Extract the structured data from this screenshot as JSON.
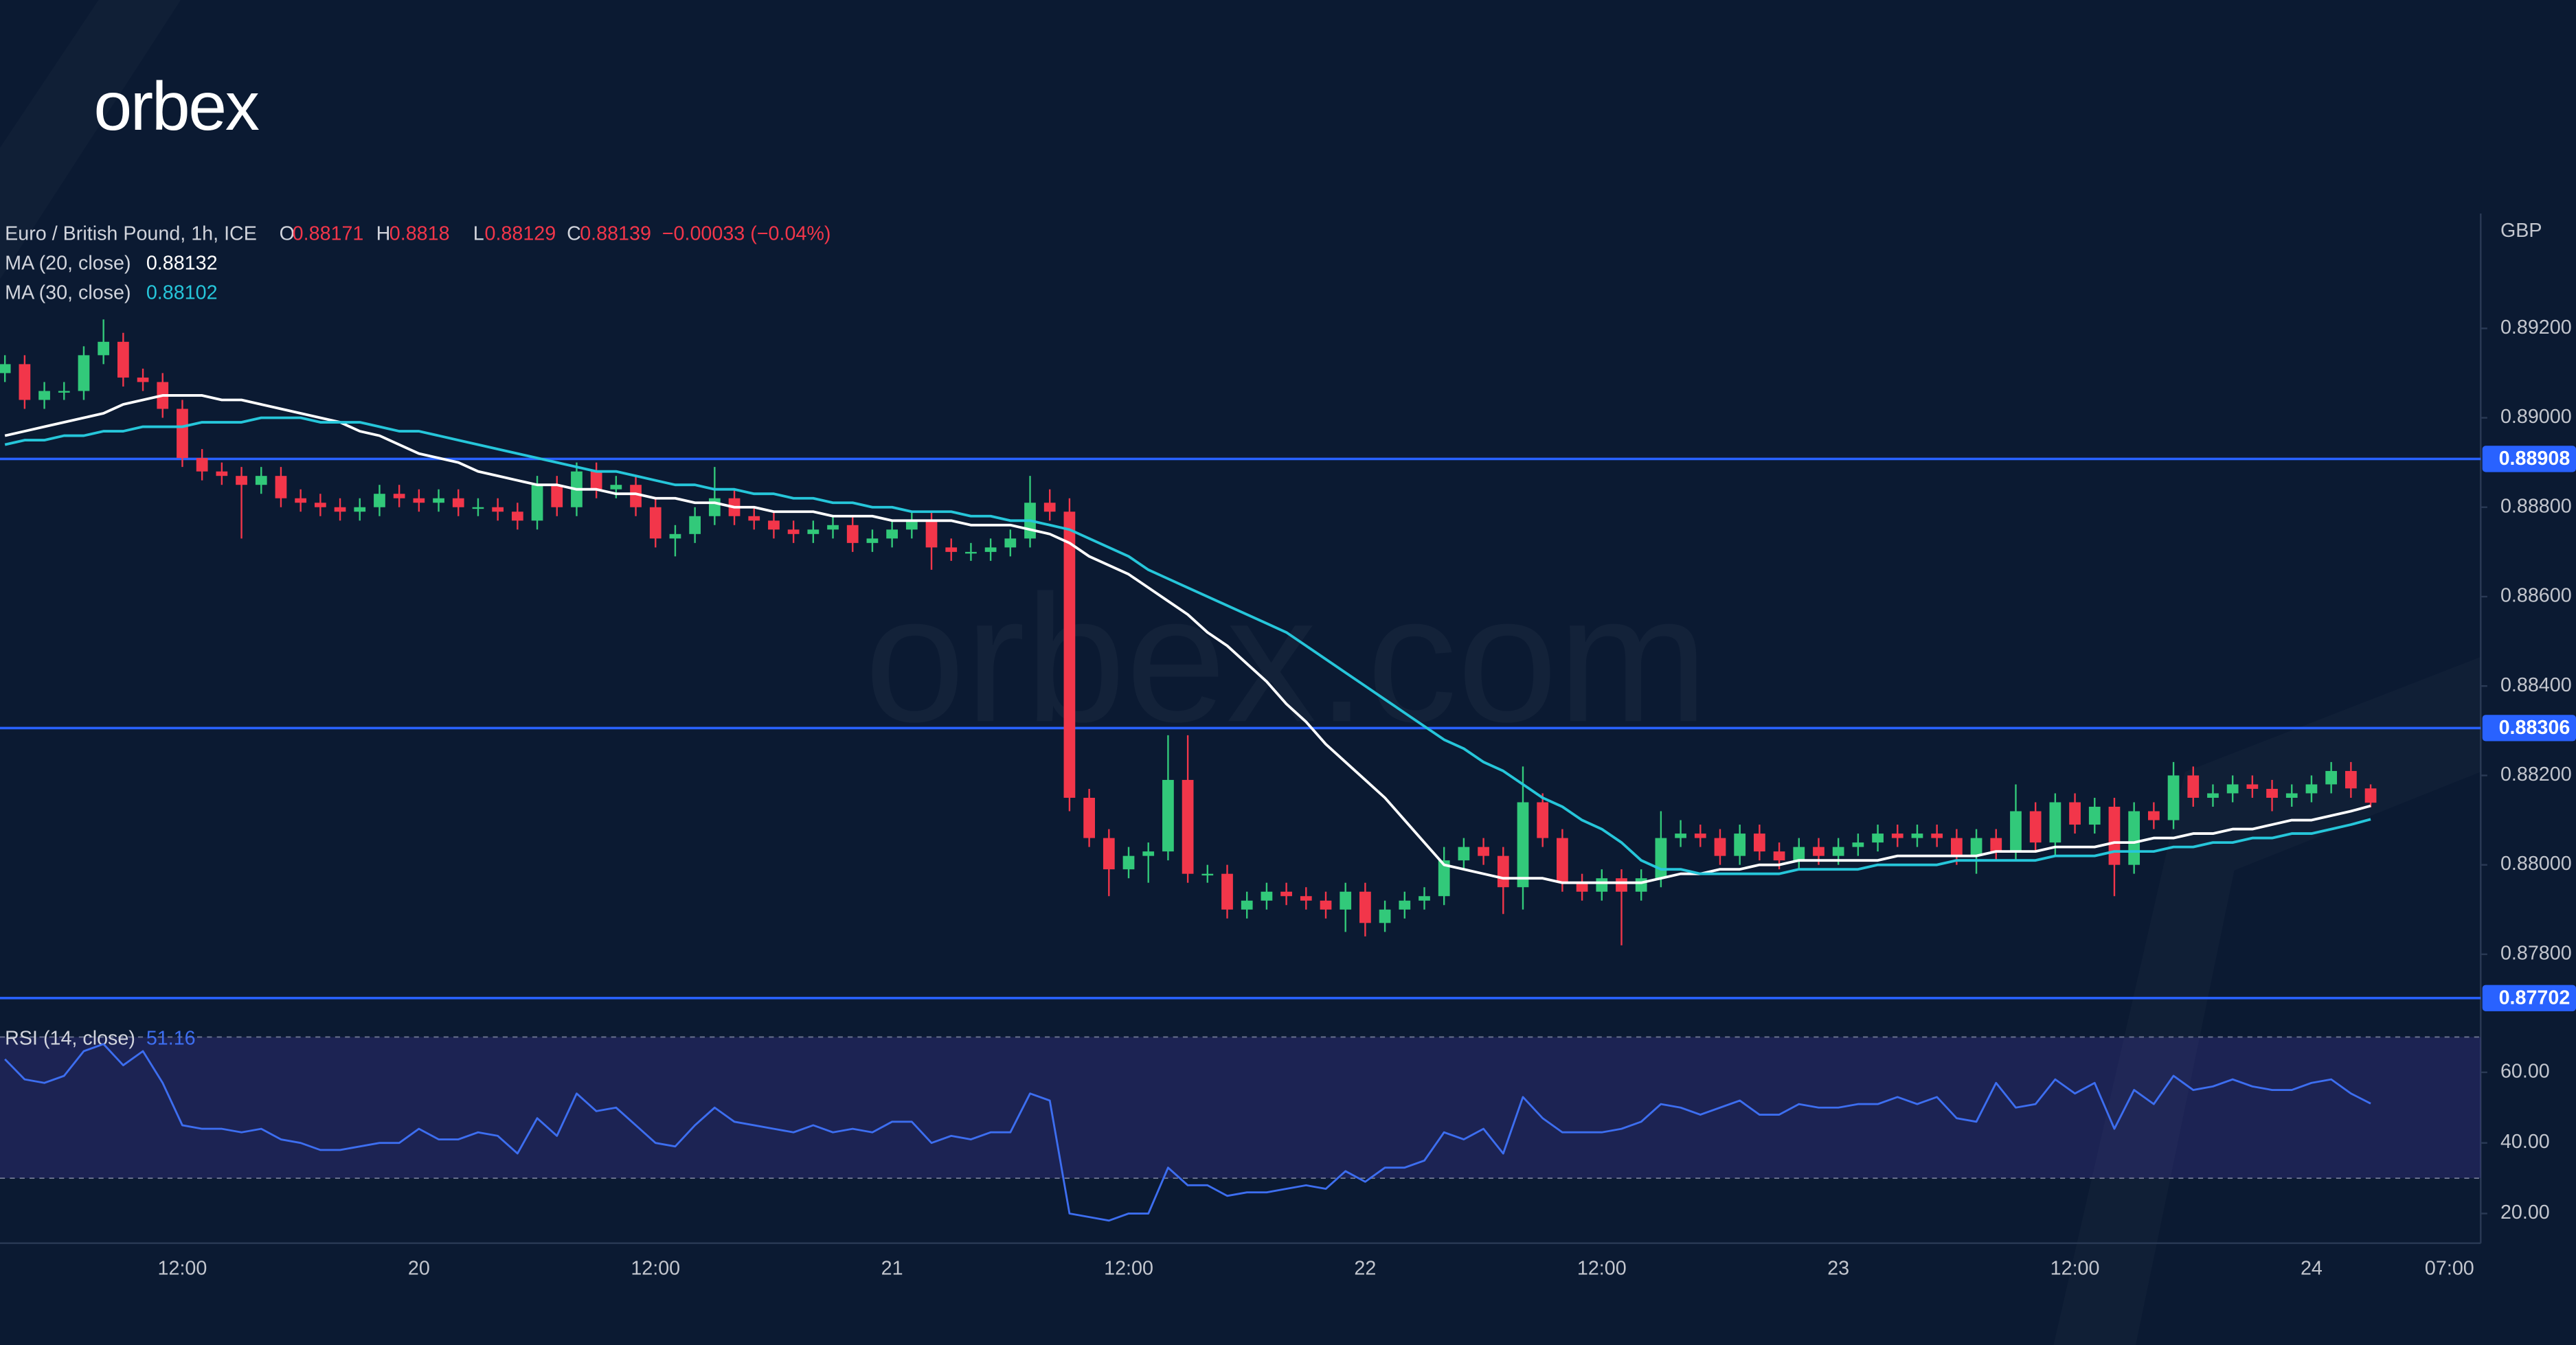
{
  "logo": "orbex",
  "watermark": "orbex.com",
  "chart_data": {
    "type": "candlestick",
    "title": "Euro / British Pound, 1h, ICE",
    "ohlc_labels": [
      "O",
      "H",
      "L",
      "C"
    ],
    "change": "−0.00033 (−0.04%)",
    "currency": "GBP",
    "up_color": "#32c97a",
    "down_color": "#f2364a",
    "categories": [
      null,
      null,
      null,
      null,
      null,
      null,
      null,
      null,
      null,
      "12:00",
      null,
      null,
      null,
      null,
      null,
      null,
      null,
      null,
      null,
      null,
      null,
      "20",
      null,
      null,
      null,
      null,
      null,
      null,
      null,
      null,
      null,
      null,
      null,
      "12:00",
      null,
      null,
      null,
      null,
      null,
      null,
      null,
      null,
      null,
      null,
      null,
      "21",
      null,
      null,
      null,
      null,
      null,
      null,
      null,
      null,
      null,
      null,
      null,
      "12:00",
      null,
      null,
      null,
      null,
      null,
      null,
      null,
      null,
      null,
      null,
      null,
      "22",
      null,
      null,
      null,
      null,
      null,
      null,
      null,
      null,
      null,
      null,
      null,
      "12:00",
      null,
      null,
      null,
      null,
      null,
      null,
      null,
      null,
      null,
      null,
      null,
      "23",
      null,
      null,
      null,
      null,
      null,
      null,
      null,
      null,
      null,
      null,
      null,
      "12:00",
      null,
      null,
      null,
      null,
      null,
      null,
      null,
      null,
      null,
      null,
      null,
      "24",
      null,
      null,
      null,
      null,
      null,
      null,
      "07:00"
    ],
    "open": [
      0.891,
      0.8912,
      0.8904,
      0.8906,
      0.8906,
      0.8914,
      0.8917,
      0.8909,
      0.8908,
      0.8902,
      0.8891,
      0.8888,
      0.8887,
      0.8885,
      0.8887,
      0.8882,
      0.8881,
      0.888,
      0.8879,
      0.888,
      0.8883,
      0.8882,
      0.8881,
      0.8882,
      0.888,
      0.888,
      0.8879,
      0.8877,
      0.8885,
      0.888,
      0.8888,
      0.8884,
      0.8885,
      0.888,
      0.8873,
      0.8874,
      0.8878,
      0.8882,
      0.8878,
      0.8877,
      0.8875,
      0.8874,
      0.8875,
      0.8876,
      0.8872,
      0.8873,
      0.8875,
      0.8877,
      0.8871,
      0.887,
      0.887,
      0.8871,
      0.8873,
      0.8881,
      0.8879,
      0.8815,
      0.8806,
      0.8799,
      0.8802,
      0.8803,
      0.8819,
      0.8798,
      0.8798,
      0.879,
      0.8792,
      0.8794,
      0.8793,
      0.8792,
      0.879,
      0.8794,
      0.8787,
      0.879,
      0.8792,
      0.8793,
      0.8801,
      0.8804,
      0.8802,
      0.8795,
      0.8814,
      0.8806,
      0.8796,
      0.8794,
      0.8797,
      0.8794,
      0.8797,
      0.8806,
      0.8807,
      0.8806,
      0.8802,
      0.8807,
      0.8803,
      0.8801,
      0.8804,
      0.8802,
      0.8804,
      0.8805,
      0.8807,
      0.8806,
      0.8807,
      0.8806,
      0.8802,
      0.8806,
      0.8803,
      0.8812,
      0.8805,
      0.8814,
      0.8809,
      0.8813,
      0.88,
      0.8812,
      0.881,
      0.882,
      0.8815,
      0.8816,
      0.8818,
      0.8817,
      0.8815,
      0.8816,
      0.8818,
      0.8821,
      0.88171,
      null,
      null,
      null,
      null
    ],
    "high": [
      0.8914,
      0.8914,
      0.8908,
      0.8908,
      0.8916,
      0.8922,
      0.8919,
      0.8911,
      0.891,
      0.8904,
      0.8893,
      0.889,
      0.8889,
      0.8889,
      0.8889,
      0.8884,
      0.8883,
      0.8882,
      0.8882,
      0.8885,
      0.8885,
      0.8884,
      0.8884,
      0.8884,
      0.8882,
      0.8882,
      0.8881,
      0.8887,
      0.8887,
      0.889,
      0.889,
      0.8887,
      0.8887,
      0.8882,
      0.8876,
      0.888,
      0.8889,
      0.8884,
      0.888,
      0.8879,
      0.8877,
      0.8877,
      0.8878,
      0.8878,
      0.8875,
      0.8877,
      0.8879,
      0.8879,
      0.8873,
      0.8872,
      0.8873,
      0.8875,
      0.8887,
      0.8884,
      0.8882,
      0.8817,
      0.8808,
      0.8804,
      0.8805,
      0.8829,
      0.8829,
      0.88,
      0.88,
      0.8794,
      0.8796,
      0.8796,
      0.8795,
      0.8794,
      0.8796,
      0.8796,
      0.8792,
      0.8794,
      0.8795,
      0.8804,
      0.8806,
      0.8806,
      0.8804,
      0.8822,
      0.8816,
      0.8808,
      0.8798,
      0.8799,
      0.8799,
      0.8799,
      0.8812,
      0.881,
      0.8809,
      0.8808,
      0.8809,
      0.8809,
      0.8805,
      0.8806,
      0.8806,
      0.8806,
      0.8807,
      0.8809,
      0.8809,
      0.8809,
      0.8809,
      0.8808,
      0.8808,
      0.8808,
      0.8818,
      0.8814,
      0.8816,
      0.8816,
      0.8815,
      0.8815,
      0.8814,
      0.8814,
      0.8823,
      0.8822,
      0.8818,
      0.882,
      0.882,
      0.8819,
      0.8818,
      0.882,
      0.8823,
      0.8823,
      0.8818,
      null,
      null,
      null,
      null
    ],
    "low": [
      0.8908,
      0.8902,
      0.8902,
      0.8904,
      0.8904,
      0.8912,
      0.8907,
      0.8906,
      0.89,
      0.8889,
      0.8886,
      0.8885,
      0.8873,
      0.8883,
      0.888,
      0.8879,
      0.8878,
      0.8877,
      0.8877,
      0.8878,
      0.888,
      0.8879,
      0.8879,
      0.8878,
      0.8878,
      0.8877,
      0.8875,
      0.8875,
      0.8878,
      0.8878,
      0.8882,
      0.8882,
      0.8878,
      0.8871,
      0.8869,
      0.8872,
      0.8876,
      0.8876,
      0.8875,
      0.8873,
      0.8872,
      0.8872,
      0.8873,
      0.887,
      0.887,
      0.8871,
      0.8873,
      0.8866,
      0.8868,
      0.8868,
      0.8868,
      0.8869,
      0.8871,
      0.8877,
      0.8812,
      0.8804,
      0.8793,
      0.8797,
      0.8796,
      0.8801,
      0.8796,
      0.8796,
      0.8788,
      0.8788,
      0.879,
      0.8791,
      0.879,
      0.8788,
      0.8785,
      0.8784,
      0.8785,
      0.8788,
      0.879,
      0.8791,
      0.8799,
      0.88,
      0.8789,
      0.879,
      0.8804,
      0.8794,
      0.8792,
      0.8792,
      0.8782,
      0.8792,
      0.8795,
      0.8804,
      0.8804,
      0.88,
      0.88,
      0.8801,
      0.8799,
      0.8799,
      0.88,
      0.88,
      0.8802,
      0.8803,
      0.8804,
      0.8804,
      0.8804,
      0.88,
      0.8798,
      0.8801,
      0.8801,
      0.8803,
      0.8802,
      0.8807,
      0.8807,
      0.8793,
      0.8798,
      0.8808,
      0.8808,
      0.8813,
      0.8813,
      0.8814,
      0.8815,
      0.8812,
      0.8813,
      0.8814,
      0.8816,
      0.8815,
      0.88129,
      null,
      null,
      null,
      null
    ],
    "close": [
      0.8912,
      0.8904,
      0.8906,
      0.8906,
      0.8914,
      0.8917,
      0.8909,
      0.8908,
      0.8902,
      0.8891,
      0.8888,
      0.8887,
      0.8885,
      0.8887,
      0.8882,
      0.8881,
      0.888,
      0.8879,
      0.888,
      0.8883,
      0.8882,
      0.8881,
      0.8882,
      0.888,
      0.888,
      0.8879,
      0.8877,
      0.8885,
      0.888,
      0.8888,
      0.8884,
      0.8885,
      0.888,
      0.8873,
      0.8874,
      0.8878,
      0.8882,
      0.8878,
      0.8877,
      0.8875,
      0.8874,
      0.8875,
      0.8876,
      0.8872,
      0.8873,
      0.8875,
      0.8877,
      0.8871,
      0.887,
      0.887,
      0.8871,
      0.8873,
      0.8881,
      0.8879,
      0.8815,
      0.8806,
      0.8799,
      0.8802,
      0.8803,
      0.8819,
      0.8798,
      0.8798,
      0.879,
      0.8792,
      0.8794,
      0.8793,
      0.8792,
      0.879,
      0.8794,
      0.8787,
      0.879,
      0.8792,
      0.8793,
      0.8801,
      0.8804,
      0.8802,
      0.8795,
      0.8814,
      0.8806,
      0.8796,
      0.8794,
      0.8797,
      0.8794,
      0.8797,
      0.8806,
      0.8807,
      0.8806,
      0.8802,
      0.8807,
      0.8803,
      0.8801,
      0.8804,
      0.8802,
      0.8804,
      0.8805,
      0.8807,
      0.8806,
      0.8807,
      0.8806,
      0.8802,
      0.8806,
      0.8803,
      0.8812,
      0.8805,
      0.8814,
      0.8809,
      0.8813,
      0.88,
      0.8812,
      0.881,
      0.882,
      0.8815,
      0.8816,
      0.8818,
      0.8817,
      0.8815,
      0.8816,
      0.8818,
      0.8821,
      0.88171,
      0.88139,
      null,
      null,
      null,
      null
    ],
    "series": [
      {
        "name": "MA (20, close)",
        "color": "#ffffff",
        "values": [
          0.8896,
          0.8897,
          0.8898,
          0.8899,
          0.89,
          0.8901,
          0.8903,
          0.8904,
          0.8905,
          0.8905,
          0.8905,
          0.8904,
          0.8904,
          0.8903,
          0.8902,
          0.8901,
          0.89,
          0.8899,
          0.8897,
          0.8896,
          0.8894,
          0.8892,
          0.8891,
          0.889,
          0.8888,
          0.8887,
          0.8886,
          0.8885,
          0.8885,
          0.8884,
          0.8884,
          0.8883,
          0.8883,
          0.8882,
          0.8882,
          0.8881,
          0.8881,
          0.888,
          0.888,
          0.8879,
          0.8879,
          0.8879,
          0.8878,
          0.8878,
          0.8878,
          0.8877,
          0.8877,
          0.8877,
          0.8877,
          0.8876,
          0.8876,
          0.8876,
          0.8875,
          0.8874,
          0.8872,
          0.8869,
          0.8867,
          0.8865,
          0.8862,
          0.8859,
          0.8856,
          0.8852,
          0.8849,
          0.8845,
          0.8841,
          0.8836,
          0.8832,
          0.8827,
          0.8823,
          0.8819,
          0.8815,
          0.881,
          0.8805,
          0.88,
          0.8799,
          0.8798,
          0.8797,
          0.8797,
          0.8797,
          0.8796,
          0.8796,
          0.8796,
          0.8796,
          0.8796,
          0.8797,
          0.8798,
          0.8798,
          0.8799,
          0.8799,
          0.88,
          0.88,
          0.8801,
          0.8801,
          0.8801,
          0.8801,
          0.8801,
          0.8802,
          0.8802,
          0.8802,
          0.8802,
          0.8802,
          0.8803,
          0.8803,
          0.8803,
          0.8804,
          0.8804,
          0.8804,
          0.8805,
          0.8805,
          0.8806,
          0.8806,
          0.8807,
          0.8807,
          0.8808,
          0.8808,
          0.8809,
          0.881,
          0.881,
          0.8811,
          0.8812,
          0.88132,
          null,
          null,
          null,
          null
        ]
      },
      {
        "name": "MA (30, close)",
        "color": "#26c6da",
        "values": [
          0.8894,
          0.8895,
          0.8895,
          0.8896,
          0.8896,
          0.8897,
          0.8897,
          0.8898,
          0.8898,
          0.8898,
          0.8899,
          0.8899,
          0.8899,
          0.89,
          0.89,
          0.89,
          0.8899,
          0.8899,
          0.8899,
          0.8898,
          0.8897,
          0.8897,
          0.8896,
          0.8895,
          0.8894,
          0.8893,
          0.8892,
          0.8891,
          0.889,
          0.8889,
          0.8888,
          0.8888,
          0.8887,
          0.8886,
          0.8885,
          0.8885,
          0.8884,
          0.8884,
          0.8883,
          0.8883,
          0.8882,
          0.8882,
          0.8881,
          0.8881,
          0.888,
          0.888,
          0.8879,
          0.8879,
          0.8879,
          0.8878,
          0.8878,
          0.8877,
          0.8877,
          0.8876,
          0.8875,
          0.8873,
          0.8871,
          0.8869,
          0.8866,
          0.8864,
          0.8862,
          0.886,
          0.8858,
          0.8856,
          0.8854,
          0.8852,
          0.8849,
          0.8846,
          0.8843,
          0.884,
          0.8837,
          0.8834,
          0.8831,
          0.8828,
          0.8826,
          0.8823,
          0.8821,
          0.8818,
          0.8815,
          0.8813,
          0.881,
          0.8808,
          0.8805,
          0.8801,
          0.8799,
          0.8799,
          0.8798,
          0.8798,
          0.8798,
          0.8798,
          0.8798,
          0.8799,
          0.8799,
          0.8799,
          0.8799,
          0.88,
          0.88,
          0.88,
          0.88,
          0.8801,
          0.8801,
          0.8801,
          0.8801,
          0.8801,
          0.8802,
          0.8802,
          0.8802,
          0.8803,
          0.8803,
          0.8803,
          0.8804,
          0.8804,
          0.8805,
          0.8805,
          0.8806,
          0.8806,
          0.8807,
          0.8807,
          0.8808,
          0.8809,
          0.88102,
          null,
          null,
          null,
          null
        ]
      }
    ],
    "levels": [
      0.88908,
      0.88306,
      0.87702
    ],
    "level_color": "#2962ff",
    "ylim": [
      0.87657,
      0.89457
    ],
    "yticks": [
      {
        "value": 0.892,
        "label": "0.89200"
      },
      {
        "value": 0.89,
        "label": "0.89000"
      },
      {
        "value": 0.888,
        "label": "0.88800"
      },
      {
        "value": 0.886,
        "label": "0.88600"
      },
      {
        "value": 0.884,
        "label": "0.88400"
      },
      {
        "value": 0.882,
        "label": "0.88200"
      },
      {
        "value": 0.88,
        "label": "0.88000"
      },
      {
        "value": 0.878,
        "label": "0.87800"
      }
    ],
    "grid": false,
    "rsi": {
      "name": "RSI (14, close)",
      "color": "#3d6ef0",
      "values": [
        63.7,
        58,
        57,
        59,
        66,
        68,
        62,
        66,
        57,
        45,
        44,
        44,
        43,
        44,
        41,
        40,
        38,
        38,
        39,
        40,
        40,
        44,
        41,
        41,
        43,
        42,
        37,
        47,
        42,
        54,
        49,
        50,
        45,
        40,
        39,
        45,
        50,
        46,
        45,
        44,
        43,
        45,
        43,
        44,
        43,
        46,
        46,
        40,
        42,
        41,
        43,
        43,
        54,
        52,
        20,
        19,
        18,
        20,
        20,
        33,
        28,
        28,
        25,
        26,
        26,
        27,
        28,
        27,
        32,
        29,
        33,
        33,
        35,
        43,
        41,
        44,
        37,
        53,
        47,
        43,
        43,
        43,
        44,
        46,
        51,
        50,
        48,
        50,
        52,
        48,
        48,
        51,
        50,
        50,
        51,
        51,
        53,
        51,
        53,
        47,
        46,
        57,
        50,
        51,
        58,
        54,
        57,
        44,
        55,
        51,
        59,
        55,
        56,
        58,
        56,
        55,
        55,
        57,
        58,
        54,
        51.16,
        null,
        null,
        null,
        null
      ],
      "ylim": [
        11.6,
        74.4
      ],
      "yticks": [
        {
          "value": 60,
          "label": "60.00"
        },
        {
          "value": 40,
          "label": "40.00"
        },
        {
          "value": 20,
          "label": "20.00"
        }
      ],
      "bands": [
        30,
        70
      ]
    }
  }
}
